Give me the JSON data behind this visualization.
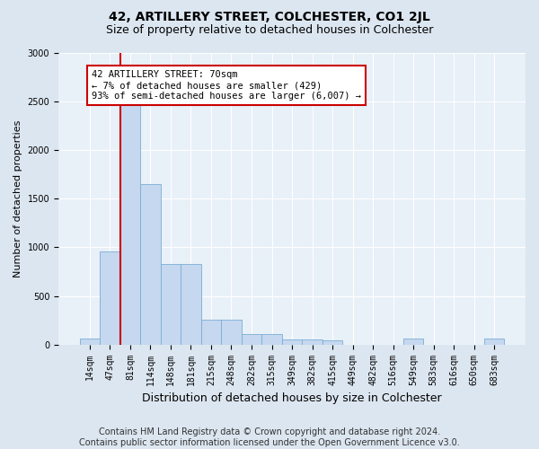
{
  "title": "42, ARTILLERY STREET, COLCHESTER, CO1 2JL",
  "subtitle": "Size of property relative to detached houses in Colchester",
  "xlabel": "Distribution of detached houses by size in Colchester",
  "ylabel": "Number of detached properties",
  "categories": [
    "14sqm",
    "47sqm",
    "81sqm",
    "114sqm",
    "148sqm",
    "181sqm",
    "215sqm",
    "248sqm",
    "282sqm",
    "315sqm",
    "349sqm",
    "382sqm",
    "415sqm",
    "449sqm",
    "482sqm",
    "516sqm",
    "549sqm",
    "583sqm",
    "616sqm",
    "650sqm",
    "683sqm"
  ],
  "values": [
    60,
    960,
    2470,
    1650,
    830,
    830,
    260,
    260,
    110,
    110,
    50,
    50,
    40,
    0,
    0,
    0,
    60,
    0,
    0,
    0,
    60
  ],
  "bar_color": "#c5d8ef",
  "bar_edge_color": "#7badd4",
  "highlight_line_color": "#cc0000",
  "annotation_text": "42 ARTILLERY STREET: 70sqm\n← 7% of detached houses are smaller (429)\n93% of semi-detached houses are larger (6,007) →",
  "annotation_box_color": "#ffffff",
  "annotation_box_edge_color": "#cc0000",
  "ylim": [
    0,
    3000
  ],
  "yticks": [
    0,
    500,
    1000,
    1500,
    2000,
    2500,
    3000
  ],
  "background_color": "#dce6f0",
  "plot_background_color": "#e8f0f8",
  "grid_color": "#ffffff",
  "title_fontsize": 10,
  "subtitle_fontsize": 9,
  "ylabel_fontsize": 8,
  "xlabel_fontsize": 9,
  "tick_fontsize": 7,
  "footer_text": "Contains HM Land Registry data © Crown copyright and database right 2024.\nContains public sector information licensed under the Open Government Licence v3.0.",
  "footer_fontsize": 7
}
